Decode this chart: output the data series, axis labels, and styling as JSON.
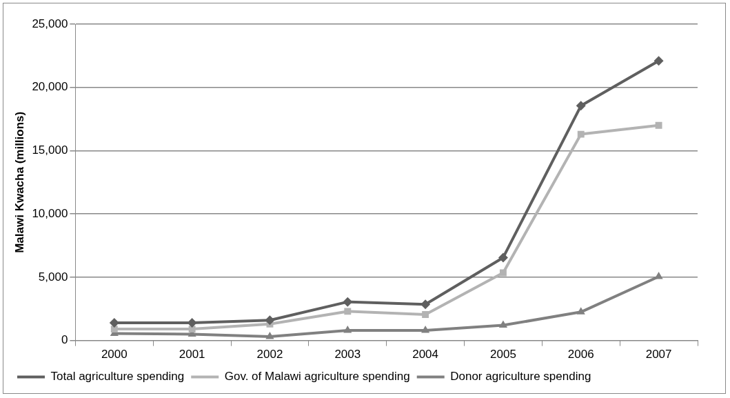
{
  "chart_data": {
    "type": "line",
    "ylabel": "Malawi Kwacha (millions)",
    "categories": [
      "2000",
      "2001",
      "2002",
      "2003",
      "2004",
      "2005",
      "2006",
      "2007"
    ],
    "series": [
      {
        "name": "Total agriculture spending",
        "color": "#5f5f5f",
        "marker": "diamond",
        "values": [
          1400,
          1400,
          1600,
          3050,
          2850,
          6550,
          18550,
          22100
        ]
      },
      {
        "name": "Gov. of Malawi agriculture spending",
        "color": "#b3b3b3",
        "marker": "square",
        "values": [
          900,
          900,
          1300,
          2300,
          2050,
          5350,
          16300,
          17000
        ]
      },
      {
        "name": "Donor agriculture spending",
        "color": "#808080",
        "marker": "triangle",
        "values": [
          550,
          500,
          300,
          800,
          800,
          1200,
          2250,
          5050
        ]
      }
    ],
    "ylim": [
      0,
      25000
    ],
    "yticks": [
      0,
      {
        "value": 5000,
        "label": "5,000"
      },
      {
        "value": 10000,
        "label": "10,000"
      },
      {
        "value": 15000,
        "label": "15,000"
      },
      {
        "value": 20000,
        "label": "20,000"
      },
      {
        "value": 25000,
        "label": "25,000"
      }
    ],
    "grid": "y",
    "legend": "bottom",
    "line_style": "solid"
  }
}
